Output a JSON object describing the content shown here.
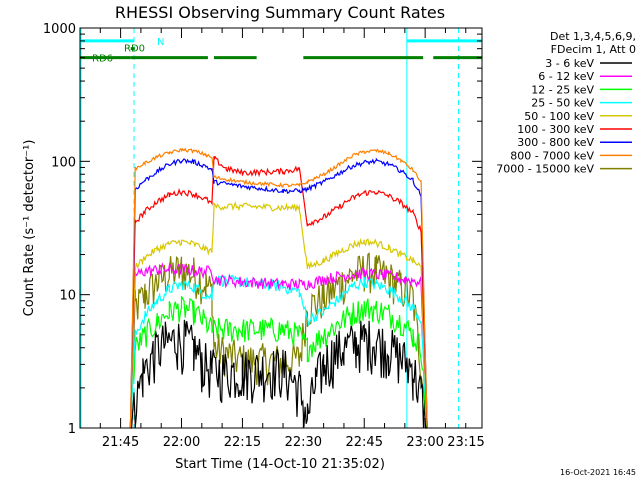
{
  "chart_data": {
    "type": "line",
    "title": "RHESSI Observing Summary Count Rates",
    "xlabel": "Start Time (14-Oct-10 21:35:02)",
    "ylabel": "Count Rate (s⁻¹ detector⁻¹)",
    "yscale": "log",
    "ylim": [
      1,
      1000
    ],
    "xlim_minutes": [
      0,
      99
    ],
    "y_ticks": [
      {
        "value": 1,
        "label": "1"
      },
      {
        "value": 10,
        "label": "10"
      },
      {
        "value": 100,
        "label": "100"
      },
      {
        "value": 1000,
        "label": "1000"
      }
    ],
    "x_ticks": [
      {
        "t": 10,
        "label": "21:45"
      },
      {
        "t": 25,
        "label": "22:00"
      },
      {
        "t": 40,
        "label": "22:15"
      },
      {
        "t": 55,
        "label": "22:30"
      },
      {
        "t": 70,
        "label": "22:45"
      },
      {
        "t": 85,
        "label": "23:00"
      },
      {
        "t": 100,
        "label": "23:15"
      }
    ],
    "legend_header": [
      "Det 1,3,4,5,6,9,",
      "FDecim 1, Att 0"
    ],
    "legend_position": "right",
    "series": [
      {
        "name": "3 - 6 keV",
        "color": "#000000",
        "points": [
          [
            12.4,
            1
          ],
          [
            13.6,
            1.5
          ],
          [
            15.5,
            2.6
          ],
          [
            18,
            3.6
          ],
          [
            21,
            4.4
          ],
          [
            24,
            4.6
          ],
          [
            26,
            4.5
          ],
          [
            28,
            4.0
          ],
          [
            30,
            3.2
          ],
          [
            32.5,
            2.7
          ],
          [
            40,
            2.7
          ],
          [
            50,
            2.8
          ],
          [
            54,
            2.0
          ],
          [
            56,
            1.2
          ],
          [
            58,
            2.2
          ],
          [
            60,
            3.0
          ],
          [
            62,
            3.5
          ],
          [
            65,
            4.0
          ],
          [
            68,
            4.4
          ],
          [
            70,
            4.6
          ],
          [
            73,
            4.5
          ],
          [
            76,
            4.0
          ],
          [
            79,
            3.4
          ],
          [
            82,
            2.8
          ],
          [
            84,
            1.8
          ],
          [
            85.5,
            1
          ]
        ]
      },
      {
        "name": "6 - 12 keV",
        "color": "#ff00ff",
        "points": [
          [
            12.4,
            1
          ],
          [
            13.6,
            14
          ],
          [
            16,
            15
          ],
          [
            20,
            15.5
          ],
          [
            25,
            15.5
          ],
          [
            30,
            15
          ],
          [
            32.5,
            15
          ],
          [
            33,
            13
          ],
          [
            40,
            12.5
          ],
          [
            50,
            12
          ],
          [
            54,
            12
          ],
          [
            56,
            12
          ],
          [
            60,
            13
          ],
          [
            65,
            14
          ],
          [
            70,
            14.5
          ],
          [
            75,
            14
          ],
          [
            80,
            13
          ],
          [
            84,
            12.5
          ],
          [
            85.5,
            1
          ]
        ]
      },
      {
        "name": "12 - 25 keV",
        "color": "#00ff00",
        "points": [
          [
            12.4,
            1
          ],
          [
            13.6,
            4
          ],
          [
            16,
            5
          ],
          [
            19,
            6.2
          ],
          [
            22,
            7.5
          ],
          [
            25,
            8.0
          ],
          [
            28,
            7.5
          ],
          [
            31,
            6.2
          ],
          [
            32.5,
            5.5
          ],
          [
            33,
            5.5
          ],
          [
            40,
            5.5
          ],
          [
            50,
            5.5
          ],
          [
            54,
            5.0
          ],
          [
            56,
            4.0
          ],
          [
            60,
            5.0
          ],
          [
            64,
            6.2
          ],
          [
            67,
            7.3
          ],
          [
            70,
            8.0
          ],
          [
            73,
            7.8
          ],
          [
            76,
            7.2
          ],
          [
            79,
            6.3
          ],
          [
            82,
            5.0
          ],
          [
            84,
            4.0
          ],
          [
            85.5,
            1
          ]
        ]
      },
      {
        "name": "25 - 50 keV",
        "color": "#00ffff",
        "points": [
          [
            12.4,
            1
          ],
          [
            13.6,
            5
          ],
          [
            16,
            7
          ],
          [
            19,
            9
          ],
          [
            22,
            11
          ],
          [
            25,
            12
          ],
          [
            28,
            11.5
          ],
          [
            31,
            10
          ],
          [
            32.5,
            9.5
          ],
          [
            33,
            13
          ],
          [
            40,
            12.5
          ],
          [
            50,
            11.5
          ],
          [
            54,
            10.5
          ],
          [
            56,
            6.5
          ],
          [
            60,
            7.5
          ],
          [
            64,
            9.5
          ],
          [
            67,
            11.5
          ],
          [
            70,
            12.5
          ],
          [
            73,
            12
          ],
          [
            76,
            11
          ],
          [
            79,
            9.5
          ],
          [
            82,
            8.0
          ],
          [
            84,
            6.5
          ],
          [
            85.5,
            1
          ]
        ]
      },
      {
        "name": "50 - 100 keV",
        "color": "#d8c800",
        "points": [
          [
            12.4,
            1
          ],
          [
            13.6,
            16
          ],
          [
            16,
            19
          ],
          [
            19,
            22
          ],
          [
            22,
            24
          ],
          [
            25,
            25
          ],
          [
            28,
            24
          ],
          [
            31,
            22
          ],
          [
            32.5,
            21
          ],
          [
            33,
            46
          ],
          [
            40,
            46
          ],
          [
            50,
            45
          ],
          [
            54,
            45
          ],
          [
            56,
            16
          ],
          [
            60,
            18
          ],
          [
            64,
            21
          ],
          [
            67,
            23.5
          ],
          [
            70,
            25
          ],
          [
            73,
            24.5
          ],
          [
            76,
            22.5
          ],
          [
            79,
            20
          ],
          [
            82,
            18
          ],
          [
            84,
            16
          ],
          [
            85.5,
            1
          ]
        ]
      },
      {
        "name": "100 - 300 keV",
        "color": "#ff0000",
        "points": [
          [
            12.4,
            1
          ],
          [
            13.6,
            35
          ],
          [
            16,
            42
          ],
          [
            19,
            50
          ],
          [
            22,
            56
          ],
          [
            25,
            59
          ],
          [
            28,
            57
          ],
          [
            31,
            52
          ],
          [
            32.5,
            48
          ],
          [
            33,
            105
          ],
          [
            36,
            88
          ],
          [
            40,
            82
          ],
          [
            50,
            84
          ],
          [
            54,
            88
          ],
          [
            56,
            34
          ],
          [
            60,
            38
          ],
          [
            64,
            46
          ],
          [
            67,
            53
          ],
          [
            70,
            58
          ],
          [
            73,
            59
          ],
          [
            76,
            55
          ],
          [
            79,
            49
          ],
          [
            82,
            41
          ],
          [
            84,
            30
          ],
          [
            85.5,
            1
          ]
        ]
      },
      {
        "name": "300 - 800 keV",
        "color": "#0000ff",
        "points": [
          [
            12.4,
            1
          ],
          [
            13.6,
            62
          ],
          [
            16,
            72
          ],
          [
            19,
            84
          ],
          [
            22,
            95
          ],
          [
            25,
            102
          ],
          [
            28,
            99
          ],
          [
            31,
            92
          ],
          [
            32.5,
            86
          ],
          [
            33,
            70
          ],
          [
            40,
            65
          ],
          [
            50,
            60
          ],
          [
            54,
            60
          ],
          [
            56,
            62
          ],
          [
            60,
            70
          ],
          [
            64,
            82
          ],
          [
            67,
            92
          ],
          [
            70,
            98
          ],
          [
            73,
            100
          ],
          [
            76,
            95
          ],
          [
            79,
            85
          ],
          [
            82,
            72
          ],
          [
            84,
            55
          ],
          [
            85.5,
            1
          ]
        ]
      },
      {
        "name": "800 - 7000 keV",
        "color": "#ff8000",
        "points": [
          [
            12.4,
            1
          ],
          [
            13.6,
            88
          ],
          [
            16,
            97
          ],
          [
            19,
            108
          ],
          [
            22,
            116
          ],
          [
            25,
            122
          ],
          [
            28,
            120
          ],
          [
            31,
            112
          ],
          [
            32.5,
            106
          ],
          [
            33,
            76
          ],
          [
            40,
            70
          ],
          [
            50,
            66
          ],
          [
            54,
            66
          ],
          [
            56,
            70
          ],
          [
            60,
            80
          ],
          [
            64,
            95
          ],
          [
            67,
            110
          ],
          [
            70,
            118
          ],
          [
            73,
            120
          ],
          [
            76,
            115
          ],
          [
            79,
            102
          ],
          [
            82,
            86
          ],
          [
            84,
            70
          ],
          [
            85.5,
            1
          ]
        ]
      },
      {
        "name": "7000 - 15000 keV",
        "color": "#808000",
        "points": [
          [
            12.4,
            1
          ],
          [
            13.6,
            8
          ],
          [
            16,
            10
          ],
          [
            19,
            12.5
          ],
          [
            22,
            14.5
          ],
          [
            25,
            15.5
          ],
          [
            28,
            14.5
          ],
          [
            31,
            12
          ],
          [
            32.5,
            10.5
          ],
          [
            33,
            4.0
          ],
          [
            40,
            3.2
          ],
          [
            50,
            3.2
          ],
          [
            54,
            3.3
          ],
          [
            56,
            8.0
          ],
          [
            60,
            9.5
          ],
          [
            64,
            12
          ],
          [
            67,
            14
          ],
          [
            70,
            15.5
          ],
          [
            73,
            15
          ],
          [
            76,
            13.5
          ],
          [
            79,
            11.5
          ],
          [
            82,
            9.5
          ],
          [
            84,
            3.0
          ],
          [
            85.5,
            1
          ]
        ]
      }
    ],
    "flags": [
      {
        "label": "RD6",
        "color": "#008000",
        "value": 600,
        "segments": [
          [
            0,
            12.5
          ],
          [
            12.5,
            31.5
          ],
          [
            33,
            43.5
          ],
          [
            55,
            84.5
          ],
          [
            87,
            99
          ]
        ]
      },
      {
        "label": "RD0",
        "color": "#008000",
        "value": 700,
        "segments": [
          [
            12.5,
            13.5
          ]
        ]
      },
      {
        "label": "N",
        "color": "#00ffff",
        "value": 800,
        "segments": [
          [
            0,
            13.3
          ],
          [
            80.5,
            99
          ]
        ]
      }
    ],
    "vlines_solid": [
      0,
      80.5
    ],
    "vlines_dashed": [
      13.3,
      93.2
    ],
    "footer_date": "16-Oct-2021 16:45"
  }
}
